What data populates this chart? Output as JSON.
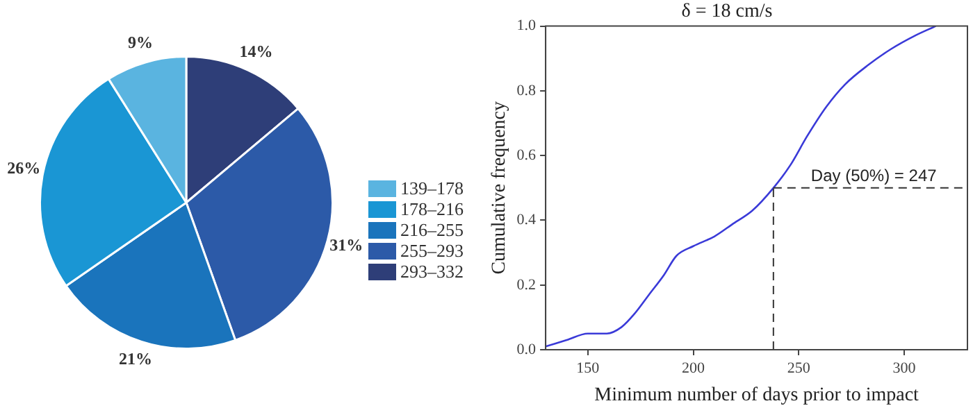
{
  "chart_data": [
    {
      "type": "pie",
      "categories": [
        "139–178",
        "178–216",
        "216–255",
        "255–293",
        "293–332"
      ],
      "values": [
        9,
        26,
        21,
        31,
        14
      ],
      "colors": [
        "#5ab4e0",
        "#1a96d4",
        "#1a74bc",
        "#2c5aa8",
        "#2e3e78"
      ],
      "value_labels": [
        "9%",
        "26%",
        "21%",
        "31%",
        "14%"
      ],
      "legend": "right"
    },
    {
      "type": "line",
      "title": "δ = 18 cm/s",
      "xlabel": "Minimum number of days prior to impact",
      "ylabel": "Cumulative frequency",
      "x": [
        130,
        140,
        150,
        159,
        166,
        172,
        179,
        186,
        192,
        200,
        210,
        219,
        228,
        238,
        246,
        254,
        263,
        272,
        283,
        294,
        305,
        315
      ],
      "values": [
        0.01,
        0.03,
        0.05,
        0.05,
        0.07,
        0.11,
        0.17,
        0.23,
        0.29,
        0.32,
        0.35,
        0.39,
        0.43,
        0.5,
        0.57,
        0.66,
        0.75,
        0.82,
        0.88,
        0.93,
        0.97,
        1
      ],
      "color": "#3a3ad8",
      "xlim": [
        130,
        330
      ],
      "xticks": [
        150,
        200,
        250,
        300
      ],
      "ylim": [
        0,
        1
      ],
      "yticks": [
        {
          "value": 0,
          "label": "0.0"
        },
        {
          "value": 0.2,
          "label": "0.2"
        },
        {
          "value": 0.4,
          "label": "0.4"
        },
        {
          "value": 0.6,
          "label": "0.6"
        },
        {
          "value": 0.8,
          "label": "0.8"
        },
        {
          "value": 1,
          "label": "1.0"
        }
      ],
      "ref_lines": [
        {
          "axis": "x",
          "value": 238,
          "line_style": "dashed"
        },
        {
          "axis": "y",
          "value": 0.5,
          "label": "Day (50%) = 247",
          "line_style": "dashed"
        }
      ],
      "marker": "none",
      "line_style": "solid",
      "grid": false,
      "legend": false
    }
  ]
}
